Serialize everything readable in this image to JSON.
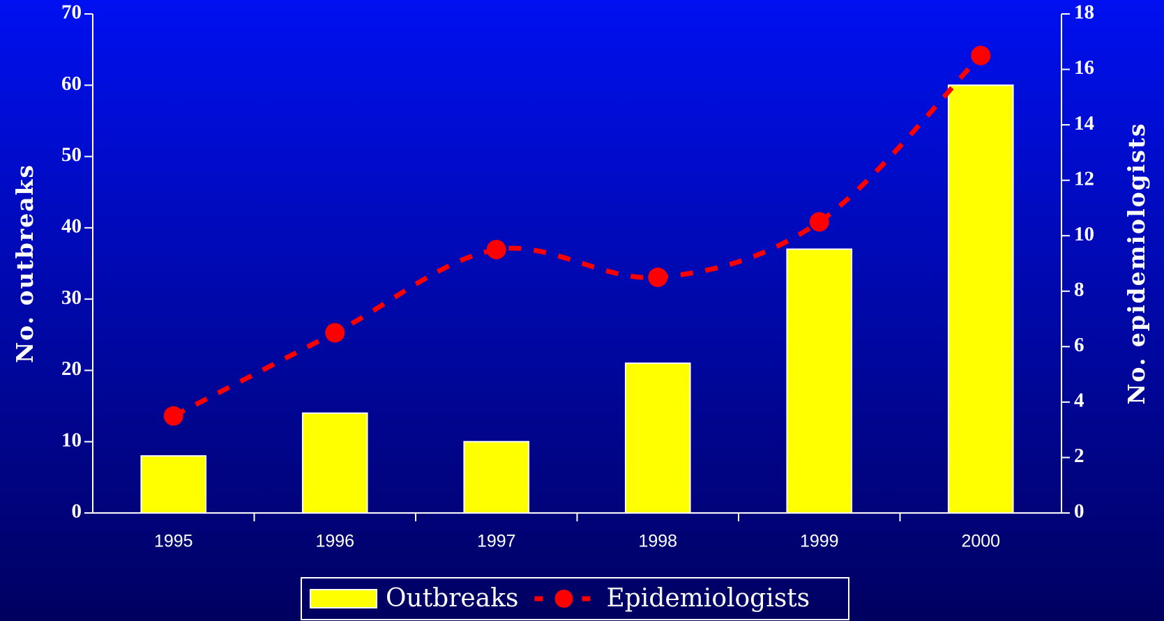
{
  "chart_data": {
    "type": "bar",
    "ylabel": "No. outbreaks",
    "y2label": "No. epidemiologists",
    "categories": [
      "1995",
      "1996",
      "1997",
      "1998",
      "1999",
      "2000"
    ],
    "series": [
      {
        "name": "Outbreaks",
        "type": "bar",
        "color": "#ffff00",
        "values": [
          8,
          14,
          10,
          21,
          37,
          60
        ]
      },
      {
        "name": "Epidemiologists",
        "type": "line",
        "axis": "y2",
        "color": "#ff0000",
        "values": [
          3.5,
          6.5,
          9.5,
          8.5,
          10.5,
          16.5
        ]
      }
    ],
    "ylim": [
      0,
      70
    ],
    "yticks": [
      0,
      10,
      20,
      30,
      40,
      50,
      60,
      70
    ],
    "y2lim": [
      0,
      18
    ],
    "y2ticks": [
      0,
      2,
      4,
      6,
      8,
      10,
      12,
      14,
      16,
      18
    ],
    "legend": "bottom"
  }
}
